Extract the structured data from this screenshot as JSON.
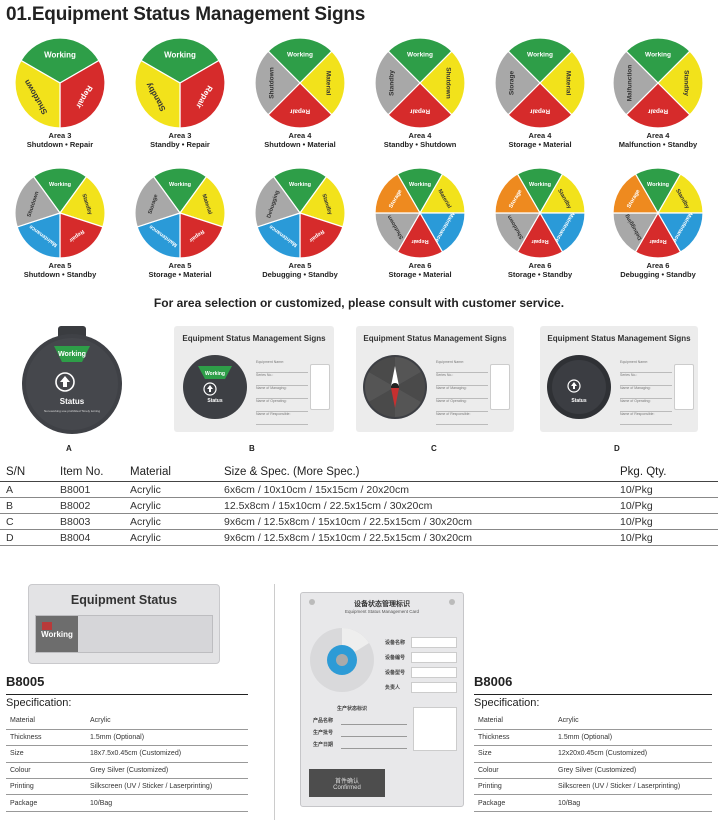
{
  "page_title": "01.Equipment Status Management Signs",
  "dials": [
    {
      "area": "Area 3",
      "subtitle": "Shutdown • Repair",
      "segments": [
        {
          "label": "Working",
          "color": "#2e9e48"
        },
        {
          "label": "Repair",
          "color": "#d62b2b"
        },
        {
          "label": "Shutdown",
          "color": "#f2e21b"
        }
      ]
    },
    {
      "area": "Area 3",
      "subtitle": "Standby • Repair",
      "segments": [
        {
          "label": "Working",
          "color": "#2e9e48"
        },
        {
          "label": "Repair",
          "color": "#d62b2b"
        },
        {
          "label": "Standby",
          "color": "#f2e21b"
        }
      ]
    },
    {
      "area": "Area 4",
      "subtitle": "Shutdown • Material",
      "segments": [
        {
          "label": "Working",
          "color": "#2e9e48"
        },
        {
          "label": "Material",
          "color": "#f2e21b"
        },
        {
          "label": "Repair",
          "color": "#d62b2b"
        },
        {
          "label": "Shutdown",
          "color": "#a8a8a8"
        }
      ]
    },
    {
      "area": "Area 4",
      "subtitle": "Standby • Shutdown",
      "segments": [
        {
          "label": "Working",
          "color": "#2e9e48"
        },
        {
          "label": "Shutdown",
          "color": "#f2e21b"
        },
        {
          "label": "Repair",
          "color": "#d62b2b"
        },
        {
          "label": "Standby",
          "color": "#a8a8a8"
        }
      ]
    },
    {
      "area": "Area 4",
      "subtitle": "Storage • Material",
      "segments": [
        {
          "label": "Working",
          "color": "#2e9e48"
        },
        {
          "label": "Material",
          "color": "#f2e21b"
        },
        {
          "label": "Repair",
          "color": "#d62b2b"
        },
        {
          "label": "Storage",
          "color": "#a8a8a8"
        }
      ]
    },
    {
      "area": "Area 4",
      "subtitle": "Malfunction • Standby",
      "segments": [
        {
          "label": "Working",
          "color": "#2e9e48"
        },
        {
          "label": "Standby",
          "color": "#f2e21b"
        },
        {
          "label": "Repair",
          "color": "#d62b2b"
        },
        {
          "label": "Malfunction",
          "color": "#a8a8a8"
        }
      ]
    },
    {
      "area": "Area 5",
      "subtitle": "Shutdown • Standby",
      "segments": [
        {
          "label": "Working",
          "color": "#2e9e48"
        },
        {
          "label": "Standby",
          "color": "#f2e21b"
        },
        {
          "label": "Repair",
          "color": "#d62b2b"
        },
        {
          "label": "Maintenance",
          "color": "#2a9ad8"
        },
        {
          "label": "Shutdown",
          "color": "#a8a8a8"
        }
      ]
    },
    {
      "area": "Area 5",
      "subtitle": "Storage • Material",
      "segments": [
        {
          "label": "Working",
          "color": "#2e9e48"
        },
        {
          "label": "Material",
          "color": "#f2e21b"
        },
        {
          "label": "Repair",
          "color": "#d62b2b"
        },
        {
          "label": "Maintenance",
          "color": "#2a9ad8"
        },
        {
          "label": "Storage",
          "color": "#a8a8a8"
        }
      ]
    },
    {
      "area": "Area 5",
      "subtitle": "Debugging • Standby",
      "segments": [
        {
          "label": "Working",
          "color": "#2e9e48"
        },
        {
          "label": "Standby",
          "color": "#f2e21b"
        },
        {
          "label": "Repair",
          "color": "#d62b2b"
        },
        {
          "label": "Maintenance",
          "color": "#2a9ad8"
        },
        {
          "label": "Debugging",
          "color": "#a8a8a8"
        }
      ]
    },
    {
      "area": "Area 6",
      "subtitle": "Storage • Material",
      "segments": [
        {
          "label": "Working",
          "color": "#2e9e48"
        },
        {
          "label": "Material",
          "color": "#f2e21b"
        },
        {
          "label": "Maintenance",
          "color": "#2a9ad8"
        },
        {
          "label": "Repair",
          "color": "#d62b2b"
        },
        {
          "label": "Shutdown",
          "color": "#a8a8a8"
        },
        {
          "label": "Storage",
          "color": "#ee8a1f"
        }
      ]
    },
    {
      "area": "Area 6",
      "subtitle": "Storage • Standby",
      "segments": [
        {
          "label": "Working",
          "color": "#2e9e48"
        },
        {
          "label": "Standby",
          "color": "#f2e21b"
        },
        {
          "label": "Maintenance",
          "color": "#2a9ad8"
        },
        {
          "label": "Repair",
          "color": "#d62b2b"
        },
        {
          "label": "Shutdown",
          "color": "#a8a8a8"
        },
        {
          "label": "Storage",
          "color": "#ee8a1f"
        }
      ]
    },
    {
      "area": "Area 6",
      "subtitle": "Debugging • Standby",
      "segments": [
        {
          "label": "Working",
          "color": "#2e9e48"
        },
        {
          "label": "Standby",
          "color": "#f2e21b"
        },
        {
          "label": "Maintenance",
          "color": "#2a9ad8"
        },
        {
          "label": "Repair",
          "color": "#d62b2b"
        },
        {
          "label": "Debugging",
          "color": "#a8a8a8"
        },
        {
          "label": "Storage",
          "color": "#ee8a1f"
        }
      ]
    }
  ],
  "note": "For area selection or customized, please consult with customer service.",
  "products": {
    "a": {
      "label": "A",
      "window_text": "Working",
      "status": "Status",
      "small_text": "Non-working use prohibited Timely turning"
    },
    "b": {
      "label": "B",
      "title": "Equipment Status Management Signs",
      "window_text": "Working",
      "status": "Status",
      "fields": [
        "Equipment Name:",
        "Series No.:",
        "Name of Managing:",
        "Name of Operating:",
        "Name of Responsible:"
      ]
    },
    "c": {
      "label": "C",
      "title": "Equipment Status Management Signs",
      "fields": [
        "Equipment Name:",
        "Series No.:",
        "Name of Managing:",
        "Name of Operating:",
        "Name of Responsible:"
      ]
    },
    "d": {
      "label": "D",
      "title": "Equipment Status Management Signs",
      "status": "Status",
      "fields": [
        "Equipment Name:",
        "Series No.:",
        "Name of Managing:",
        "Name of Operating:",
        "Name of Responsible:"
      ]
    }
  },
  "table": {
    "headers": [
      "S/N",
      "Item No.",
      "Material",
      "Size & Spec. (More Spec.)",
      "Pkg. Qty."
    ],
    "rows": [
      [
        "A",
        "B8001",
        "Acrylic",
        "6x6cm / 10x10cm / 15x15cm / 20x20cm",
        "10/Pkg"
      ],
      [
        "B",
        "B8002",
        "Acrylic",
        "12.5x8cm / 15x10cm / 22.5x15cm / 30x20cm",
        "10/Pkg"
      ],
      [
        "C",
        "B8003",
        "Acrylic",
        "9x6cm / 12.5x8cm / 15x10cm / 22.5x15cm / 30x20cm",
        "10/Pkg"
      ],
      [
        "D",
        "B8004",
        "Acrylic",
        "9x6cm / 12.5x8cm / 15x10cm / 22.5x15cm / 30x20cm",
        "10/Pkg"
      ]
    ]
  },
  "b8005": {
    "image_title": "Equipment Status",
    "image_working": "Working",
    "model": "B8005",
    "spec_heading": "Specification:",
    "specs": [
      [
        "Material",
        "Acrylic"
      ],
      [
        "Thickness",
        "1.5mm (Optional)"
      ],
      [
        "Size",
        "18x7.5x0.45cm (Customized)"
      ],
      [
        "Colour",
        "Grey Silver (Customized)"
      ],
      [
        "Printing",
        "Silkscreen (UV / Sticker / Laserprinting)"
      ],
      [
        "Package",
        "10/Bag"
      ]
    ]
  },
  "b8006": {
    "image_title_cn": "设备状态管理标识",
    "image_title_en": "Equipment Status Management Card",
    "image_rows": [
      "设备名称",
      "设备编号",
      "设备型号",
      "负责人"
    ],
    "image_section": "生产状态标识",
    "image_section_rows": [
      "产品名称",
      "生产批号",
      "生产日期"
    ],
    "image_confirm_cn": "首件确认",
    "image_confirm_en": "Confirmed",
    "model": "B8006",
    "spec_heading": "Specification:",
    "specs": [
      [
        "Material",
        "Acrylic"
      ],
      [
        "Thickness",
        "1.5mm (Optional)"
      ],
      [
        "Size",
        "12x20x0.45cm (Customized)"
      ],
      [
        "Colour",
        "Grey Silver (Customized)"
      ],
      [
        "Printing",
        "Silkscreen (UV / Sticker / Laserprinting)"
      ],
      [
        "Package",
        "10/Bag"
      ]
    ]
  }
}
